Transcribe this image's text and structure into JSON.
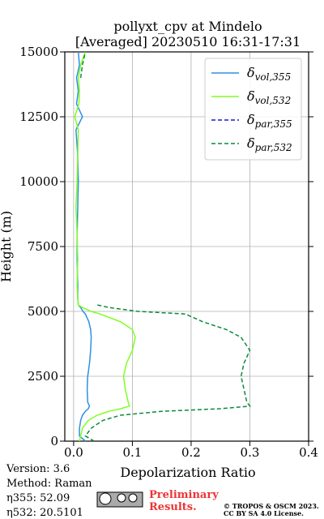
{
  "chart_data": {
    "type": "profile",
    "title": [
      "pollyxt_cpv at Mindelo",
      "[Averaged] 20230510 16:31-17:31"
    ],
    "xlabel": "Depolarization Ratio",
    "ylabel": "Height (m)",
    "xlim": [
      -0.015,
      0.4
    ],
    "ylim": [
      0,
      15000
    ],
    "xticks": [
      {
        "value": 0,
        "label": "0.0"
      },
      0.1,
      0.2,
      0.3,
      0.4
    ],
    "yticks": [
      0,
      2500,
      5000,
      7500,
      10000,
      12500,
      15000
    ],
    "grid": true,
    "legend": "upper right",
    "y": [
      0,
      200,
      500,
      800,
      1000,
      1150,
      1250,
      1350,
      1500,
      2000,
      2500,
      3000,
      3500,
      4000,
      4300,
      4600,
      4900,
      5000,
      5150,
      5250,
      5500,
      6000,
      7000,
      8000,
      9000,
      10000,
      11000,
      12000,
      12500,
      13000,
      13500,
      14000,
      14500,
      15000
    ],
    "series": [
      {
        "name": "δvol,355",
        "color": "#2f8fe6",
        "style": "solid",
        "values": [
          0.02,
          0.01,
          0.01,
          0.012,
          0.015,
          0.02,
          0.025,
          0.027,
          0.024,
          0.023,
          0.024,
          0.027,
          0.029,
          0.03,
          0.029,
          0.026,
          0.02,
          0.016,
          0.012,
          0.008,
          0.007,
          0.007,
          0.006,
          0.006,
          0.007,
          0.008,
          0.007,
          0.004,
          0.015,
          0.005,
          0.008,
          0.005,
          0.01,
          0.008
        ]
      },
      {
        "name": "δvol,532",
        "color": "#7fff1f",
        "style": "solid",
        "values": [
          0.01,
          0.012,
          0.015,
          0.025,
          0.04,
          0.06,
          0.08,
          0.095,
          0.093,
          0.088,
          0.085,
          0.09,
          0.1,
          0.105,
          0.1,
          0.08,
          0.045,
          0.03,
          0.015,
          0.008,
          0.007,
          0.006,
          0.007,
          0.006,
          0.004,
          0.006,
          0.007,
          0.008,
          0.002,
          0.009,
          0.01,
          0.008,
          0.012,
          0.02
        ]
      },
      {
        "name": "δpar,355",
        "color": "#1a1acc",
        "style": "dashed",
        "values": [
          null,
          null,
          null,
          null,
          null,
          null,
          null,
          null,
          null,
          null,
          null,
          null,
          null,
          null,
          null,
          null,
          null,
          null,
          null,
          null,
          null,
          null,
          null,
          null,
          null,
          null,
          null,
          null,
          null,
          null,
          null,
          null,
          null,
          null
        ]
      },
      {
        "name": "δpar,532",
        "color": "#0a8a3a",
        "style": "dashed",
        "values": [
          0.035,
          0.02,
          0.03,
          0.05,
          0.08,
          0.15,
          0.25,
          0.3,
          0.295,
          0.29,
          0.285,
          0.29,
          0.3,
          0.285,
          0.26,
          0.22,
          0.19,
          0.11,
          0.06,
          0.04,
          null,
          null,
          null,
          null,
          null,
          null,
          null,
          null,
          null,
          null,
          null,
          0.012,
          0.015,
          0.02
        ]
      }
    ],
    "info": [
      "Version: 3.6",
      "Method: Raman",
      "η355:  52.09",
      "η532: 20.5101"
    ],
    "notice": [
      "Preliminary",
      "Results."
    ],
    "copyright": [
      "© TROPOS & OSCM 2023.",
      "CC BY SA 4.0 License."
    ]
  }
}
